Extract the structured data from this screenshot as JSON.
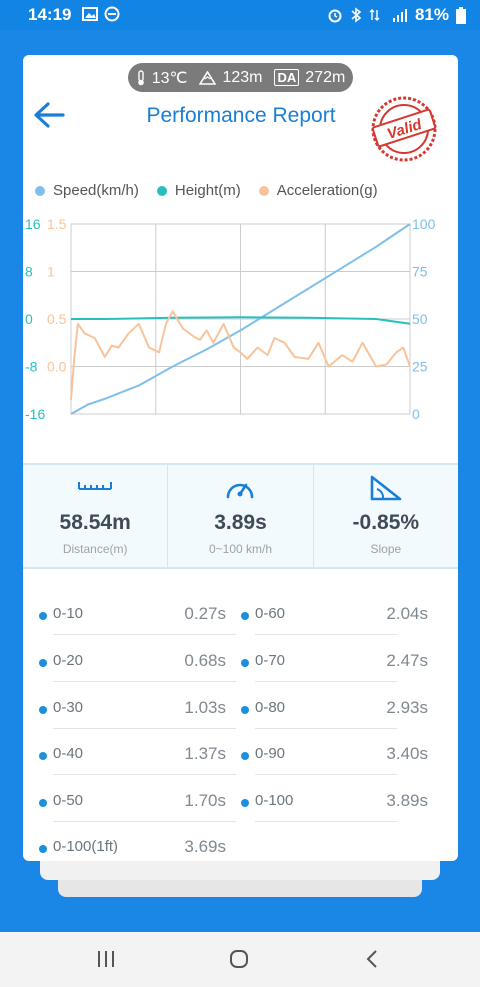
{
  "status_bar": {
    "time": "14:19",
    "battery": "81%"
  },
  "conditions": {
    "temperature": "13℃",
    "altitude": "123m",
    "da_label": "DA",
    "density_altitude": "272m"
  },
  "header": {
    "title": "Performance Report",
    "stamp_text": "Valid"
  },
  "chart_data": {
    "type": "line",
    "legend": [
      "Speed(km/h)",
      "Height(m)",
      "Acceleration(g)"
    ],
    "colors": {
      "speed": "#7fbfe9",
      "height": "#28bfbf",
      "accel": "#f8c39a",
      "grid": "#cccccc"
    },
    "left_height_ticks": [
      "16",
      "8",
      "0",
      "-8",
      "-16"
    ],
    "left_accel_ticks": [
      "1.5",
      "1",
      "0.5",
      "0.0"
    ],
    "right_speed_ticks": [
      "100",
      "75",
      "50",
      "25",
      "0"
    ],
    "series": [
      {
        "name": "Speed(km/h)",
        "axis": "right",
        "x": [
          0,
          0.05,
          0.1,
          0.2,
          0.3,
          0.4,
          0.5,
          0.6,
          0.7,
          0.8,
          0.9,
          1.0
        ],
        "values": [
          0,
          5,
          8,
          15,
          25,
          34,
          44,
          55,
          66,
          77,
          88,
          100
        ]
      },
      {
        "name": "Height(m)",
        "axis": "left-outer",
        "x": [
          0,
          0.1,
          0.3,
          0.5,
          0.7,
          0.9,
          1.0
        ],
        "values": [
          0,
          0,
          0.2,
          0.3,
          0.2,
          0,
          -0.8
        ]
      },
      {
        "name": "Acceleration(g)",
        "axis": "left-inner",
        "x": [
          0,
          0.01,
          0.02,
          0.04,
          0.07,
          0.1,
          0.12,
          0.14,
          0.17,
          0.2,
          0.23,
          0.26,
          0.28,
          0.3,
          0.33,
          0.36,
          0.38,
          0.4,
          0.42,
          0.45,
          0.48,
          0.5,
          0.52,
          0.55,
          0.58,
          0.6,
          0.63,
          0.66,
          0.7,
          0.73,
          0.76,
          0.8,
          0.83,
          0.86,
          0.9,
          0.93,
          0.96,
          0.98,
          1.0
        ],
        "values": [
          0.15,
          0.6,
          0.95,
          0.85,
          0.8,
          0.6,
          0.72,
          0.7,
          0.85,
          0.95,
          0.7,
          0.65,
          0.95,
          1.08,
          0.9,
          0.82,
          0.78,
          0.88,
          0.75,
          0.95,
          0.7,
          0.65,
          0.58,
          0.7,
          0.62,
          0.8,
          0.75,
          0.6,
          0.58,
          0.75,
          0.5,
          0.62,
          0.55,
          0.75,
          0.5,
          0.52,
          0.65,
          0.7,
          0.5
        ]
      }
    ]
  },
  "stats": [
    {
      "value": "58.54m",
      "label": "Distance(m)",
      "icon": "ruler-icon"
    },
    {
      "value": "3.89s",
      "label": "0~100 km/h",
      "icon": "speedometer-icon"
    },
    {
      "value": "-0.85%",
      "label": "Slope",
      "icon": "slope-icon"
    }
  ],
  "timings_left": [
    {
      "range": "0-10",
      "time": "0.27s"
    },
    {
      "range": "0-20",
      "time": "0.68s"
    },
    {
      "range": "0-30",
      "time": "1.03s"
    },
    {
      "range": "0-40",
      "time": "1.37s"
    },
    {
      "range": "0-50",
      "time": "1.70s"
    },
    {
      "range": "0-100(1ft)",
      "time": "3.69s"
    }
  ],
  "timings_right": [
    {
      "range": "0-60",
      "time": "2.04s"
    },
    {
      "range": "0-70",
      "time": "2.47s"
    },
    {
      "range": "0-80",
      "time": "2.93s"
    },
    {
      "range": "0-90",
      "time": "3.40s"
    },
    {
      "range": "0-100",
      "time": "3.89s"
    }
  ]
}
